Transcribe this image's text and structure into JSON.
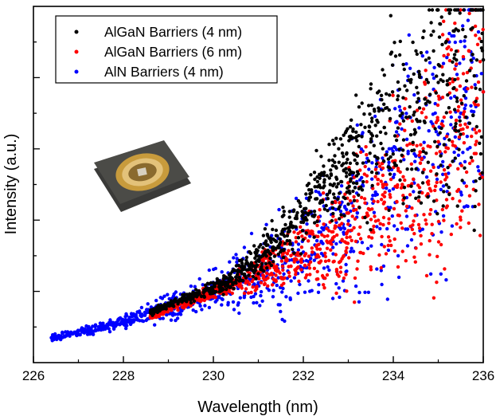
{
  "chart_data": {
    "type": "scatter",
    "title": "",
    "xlabel": "Wavelength (nm)",
    "ylabel": "Intensity (a.u.)",
    "xlim": [
      226,
      236
    ],
    "ylim": [
      0,
      1
    ],
    "x_ticks": [
      "226",
      "228",
      "230",
      "232",
      "234",
      "236"
    ],
    "y_tick_labels_shown": false,
    "grid": false,
    "legend_position": "top-left",
    "inset_image": "LED package photo",
    "series": [
      {
        "name": "AlGaN Barriers (4 nm)",
        "color": "#000000",
        "x": [
          228.6,
          229.0,
          229.4,
          229.8,
          230.2,
          230.5,
          230.8,
          231.1,
          231.4,
          231.7,
          232.0,
          232.3,
          232.6,
          232.9,
          233.2,
          233.5,
          233.8,
          234.2,
          234.7,
          235.2,
          235.7,
          236.0
        ],
        "y": [
          0.14,
          0.16,
          0.18,
          0.2,
          0.22,
          0.24,
          0.27,
          0.3,
          0.34,
          0.38,
          0.42,
          0.46,
          0.5,
          0.54,
          0.58,
          0.62,
          0.66,
          0.7,
          0.74,
          0.78,
          0.82,
          0.85
        ]
      },
      {
        "name": "AlGaN Barriers (6 nm)",
        "color": "#ff0000",
        "x": [
          228.6,
          229.0,
          229.4,
          229.8,
          230.2,
          230.6,
          231.0,
          231.4,
          231.8,
          232.2,
          232.6,
          233.0,
          233.4,
          233.8,
          234.2,
          234.6,
          235.0,
          235.4,
          235.8,
          236.0
        ],
        "y": [
          0.13,
          0.15,
          0.17,
          0.19,
          0.21,
          0.23,
          0.25,
          0.27,
          0.29,
          0.31,
          0.34,
          0.37,
          0.41,
          0.45,
          0.5,
          0.56,
          0.62,
          0.68,
          0.73,
          0.76
        ]
      },
      {
        "name": "AlN Barriers (4 nm)",
        "color": "#0000ff",
        "x": [
          226.4,
          226.8,
          227.2,
          227.6,
          228.0,
          228.4,
          228.8,
          229.2,
          229.6,
          230.0,
          230.4,
          230.8,
          231.2,
          231.6,
          232.0,
          232.4,
          232.8,
          233.2,
          233.6,
          234.0,
          234.5,
          235.0,
          235.5,
          236.0
        ],
        "y": [
          0.07,
          0.08,
          0.09,
          0.1,
          0.115,
          0.13,
          0.145,
          0.16,
          0.18,
          0.2,
          0.22,
          0.24,
          0.26,
          0.28,
          0.31,
          0.34,
          0.38,
          0.42,
          0.47,
          0.52,
          0.58,
          0.64,
          0.7,
          0.76
        ]
      }
    ]
  }
}
